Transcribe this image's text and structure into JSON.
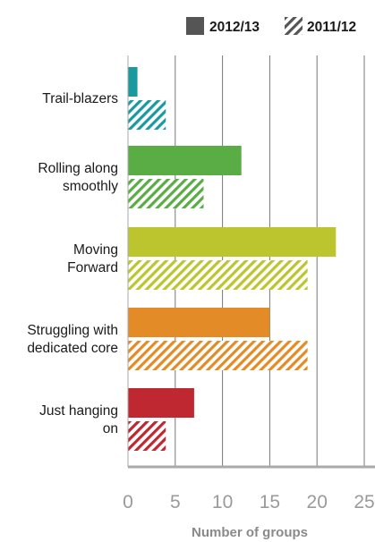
{
  "chart_data": {
    "type": "bar",
    "orientation": "horizontal",
    "categories": [
      [
        "Trail-blazers"
      ],
      [
        "Rolling along",
        "smoothly"
      ],
      [
        "Moving",
        "Forward"
      ],
      [
        "Struggling with",
        "dedicated core"
      ],
      [
        "Just hanging",
        "on"
      ]
    ],
    "category_colors": [
      "#1a9a9f",
      "#5aac45",
      "#bcc52e",
      "#e38c27",
      "#bf2731"
    ],
    "series": [
      {
        "name": "2012/13",
        "style": "solid",
        "values": [
          1,
          12,
          22,
          15,
          7
        ]
      },
      {
        "name": "2011/12",
        "style": "hatched",
        "values": [
          4,
          8,
          19,
          19,
          4
        ]
      }
    ],
    "xlabel": "Number of groups",
    "ylabel": "",
    "xlim": [
      0,
      25
    ],
    "xticks": [
      0,
      5,
      10,
      15,
      20,
      25
    ],
    "grid": "vertical",
    "legend_position": "top-right",
    "legend_colors": {
      "solid": "#555555",
      "hatch": "#555555"
    },
    "axis_color": "#aaaaaa"
  }
}
